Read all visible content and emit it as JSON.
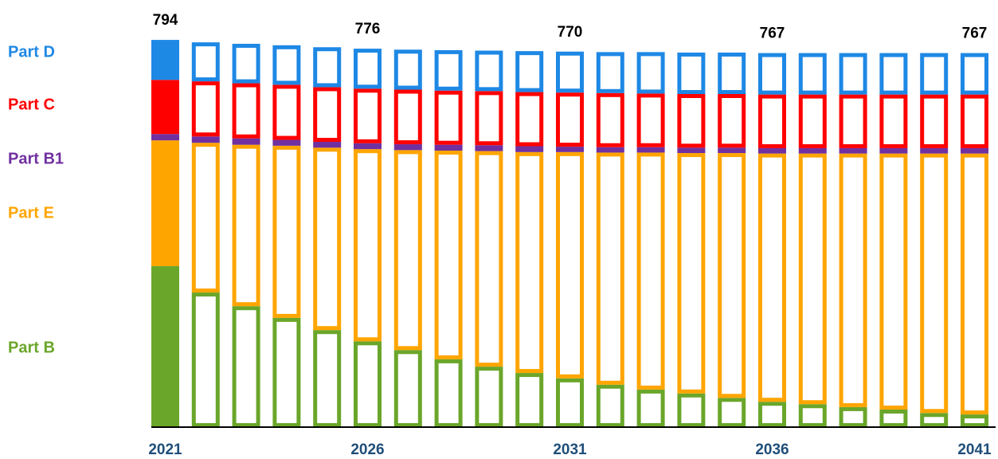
{
  "chart_data": {
    "type": "stacked-bar",
    "categories": [
      "2021",
      null,
      null,
      null,
      null,
      "2026",
      null,
      null,
      null,
      null,
      "2031",
      null,
      null,
      null,
      null,
      "2036",
      null,
      null,
      null,
      null,
      "2041"
    ],
    "series": [
      {
        "name": "Part B",
        "color": "#6aa62a",
        "values": [
          330,
          276,
          248,
          224,
          199,
          176,
          158,
          139,
          124,
          111,
          100,
          87,
          77,
          69,
          60,
          52,
          47,
          41,
          36,
          29,
          26
        ]
      },
      {
        "name": "Part E",
        "color": "#ffa500",
        "values": [
          258,
          307,
          331,
          353,
          374,
          394,
          410,
          428,
          442,
          453,
          464,
          476,
          486,
          493,
          502,
          509,
          514,
          520,
          525,
          532,
          535
        ]
      },
      {
        "name": "Part B1",
        "color": "#7030a0",
        "values": [
          13,
          13,
          13,
          12,
          12,
          12,
          12,
          12,
          12,
          12,
          11,
          11,
          11,
          11,
          11,
          11,
          11,
          11,
          11,
          11,
          11
        ]
      },
      {
        "name": "Part C",
        "color": "#ff0000",
        "values": [
          111,
          113,
          113,
          113,
          112,
          112,
          112,
          111,
          111,
          111,
          111,
          111,
          110,
          110,
          110,
          110,
          110,
          110,
          110,
          110,
          110
        ]
      },
      {
        "name": "Part D",
        "color": "#1e88e5",
        "values": [
          82,
          80,
          81,
          81,
          82,
          82,
          82,
          83,
          83,
          84,
          84,
          84,
          85,
          85,
          85,
          85,
          85,
          85,
          85,
          85,
          85
        ]
      }
    ],
    "totals": [
      794,
      null,
      null,
      null,
      null,
      776,
      null,
      null,
      null,
      null,
      770,
      null,
      null,
      null,
      null,
      767,
      null,
      null,
      null,
      null,
      767
    ]
  }
}
